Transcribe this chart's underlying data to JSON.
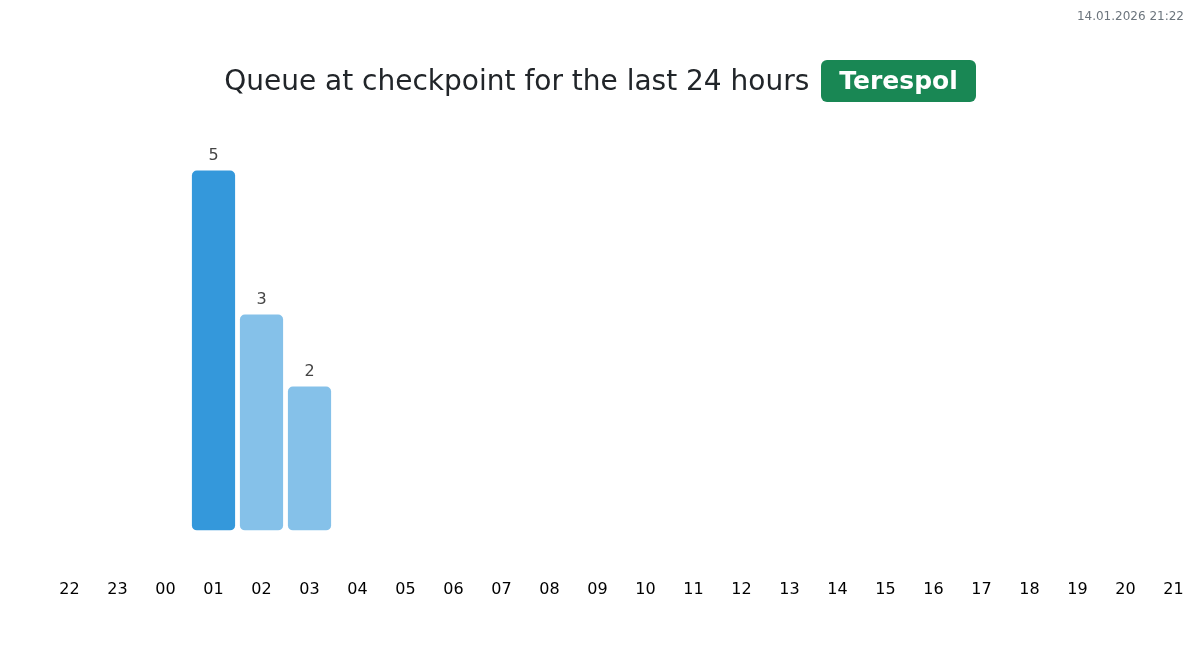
{
  "chart_data": {
    "type": "bar",
    "title": "Queue at checkpoint for the last 24 hours",
    "subtitle": "Terespol",
    "annotations": [
      "14.01.2026 21:22"
    ],
    "categories": [
      "22",
      "23",
      "00",
      "01",
      "02",
      "03",
      "04",
      "05",
      "06",
      "07",
      "08",
      "09",
      "10",
      "11",
      "12",
      "13",
      "14",
      "15",
      "16",
      "17",
      "18",
      "19",
      "20",
      "21"
    ],
    "values": [
      null,
      null,
      null,
      5,
      3,
      2,
      null,
      null,
      null,
      null,
      null,
      null,
      null,
      null,
      null,
      null,
      null,
      null,
      null,
      null,
      null,
      null,
      null,
      null
    ],
    "colors": [
      null,
      null,
      null,
      "#3498db",
      "#85c1e9",
      "#85c1e9",
      null,
      null,
      null,
      null,
      null,
      null,
      null,
      null,
      null,
      null,
      null,
      null,
      null,
      null,
      null,
      null,
      null,
      null
    ],
    "data_labels": true,
    "tick_labels": "x"
  }
}
